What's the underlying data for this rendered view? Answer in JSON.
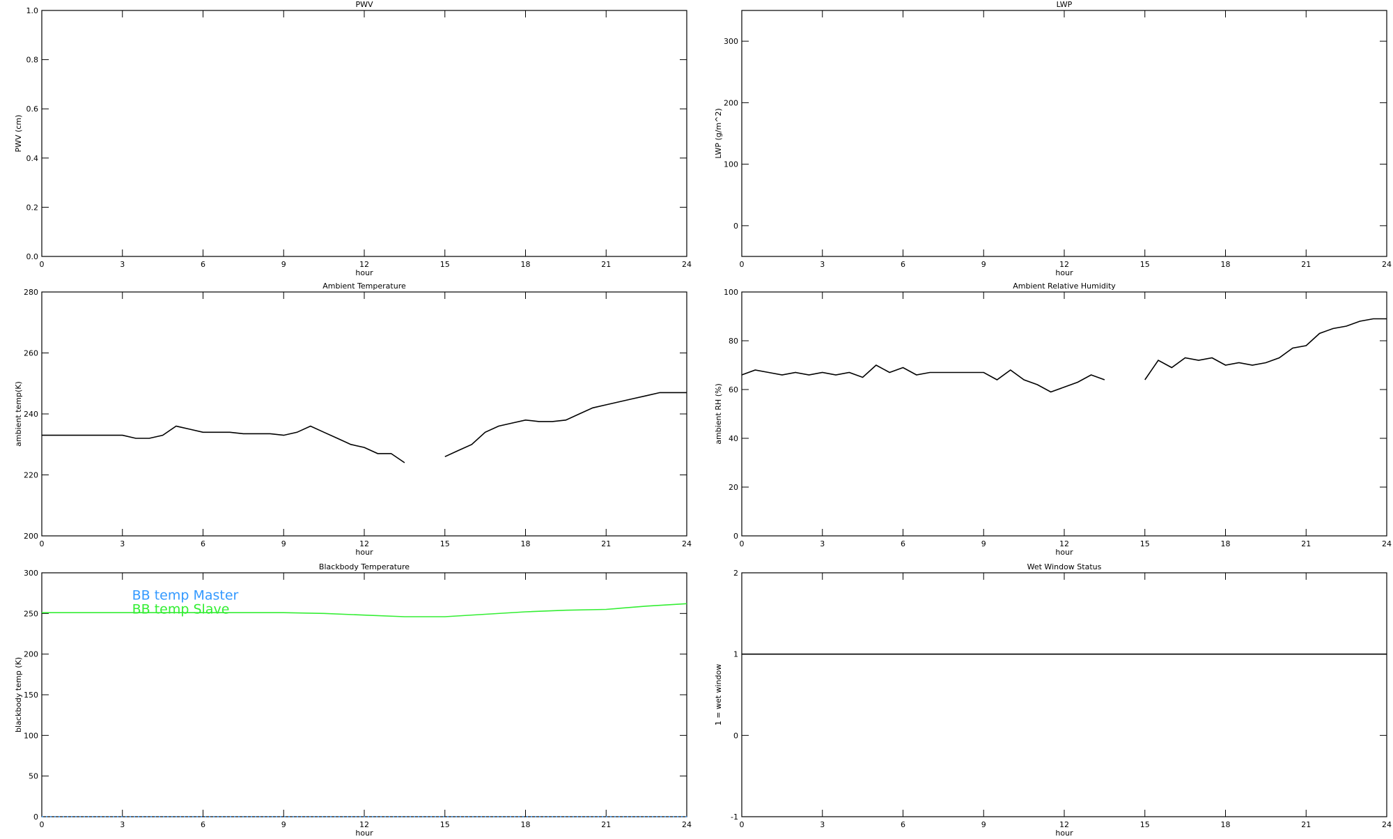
{
  "chart_data": [
    {
      "type": "line",
      "title": "PWV",
      "xlabel": "hour",
      "ylabel": "PWV (cm)",
      "xlim": [
        0,
        24
      ],
      "xticks": [
        0,
        3,
        6,
        9,
        12,
        15,
        18,
        21,
        24
      ],
      "ylim": [
        0,
        1
      ],
      "yticks": [
        {
          "value": 0,
          "label": "0.0"
        },
        0.2,
        0.4,
        0.6,
        0.8,
        {
          "value": 1,
          "label": "1.0"
        }
      ]
    },
    {
      "type": "line",
      "title": "LWP",
      "xlabel": "hour",
      "ylabel": "LWP (g/m^2)",
      "xlim": [
        0,
        24
      ],
      "xticks": [
        0,
        3,
        6,
        9,
        12,
        15,
        18,
        21,
        24
      ],
      "ylim": [
        -50,
        350
      ],
      "yticks": [
        0,
        100,
        200,
        300
      ]
    },
    {
      "type": "line",
      "title": "Ambient Temperature",
      "xlabel": "hour",
      "ylabel": "ambient temp(K)",
      "xlim": [
        0,
        24
      ],
      "xticks": [
        0,
        3,
        6,
        9,
        12,
        15,
        18,
        21,
        24
      ],
      "ylim": [
        200,
        280
      ],
      "yticks": [
        200,
        220,
        240,
        260,
        280
      ],
      "x": [
        0,
        0.5,
        1,
        1.5,
        2,
        2.5,
        3,
        3.5,
        4,
        4.5,
        5,
        5.5,
        6,
        6.5,
        7,
        7.5,
        8,
        8.5,
        9,
        9.5,
        10,
        10.5,
        11,
        11.5,
        12,
        12.5,
        13,
        13.5,
        14,
        14.5,
        15,
        15.5,
        16,
        16.5,
        17,
        17.5,
        18,
        18.5,
        19,
        19.5,
        20,
        20.5,
        21,
        21.5,
        22,
        22.5,
        23,
        23.5,
        24
      ],
      "series": [
        {
          "color": "#000000",
          "values": [
            233,
            233,
            233,
            233,
            233,
            233,
            233,
            232,
            232,
            233,
            236,
            235,
            234,
            234,
            234,
            233.5,
            233.5,
            233.5,
            233,
            234,
            236,
            234,
            232,
            230,
            229,
            227,
            227,
            224,
            null,
            null,
            226,
            228,
            230,
            234,
            236,
            237,
            238,
            237.5,
            237.5,
            238,
            240,
            242,
            243,
            244,
            245,
            246,
            247,
            247,
            247
          ]
        }
      ]
    },
    {
      "type": "line",
      "title": "Ambient Relative Humidity",
      "xlabel": "hour",
      "ylabel": "ambient RH (%)",
      "xlim": [
        0,
        24
      ],
      "xticks": [
        0,
        3,
        6,
        9,
        12,
        15,
        18,
        21,
        24
      ],
      "ylim": [
        0,
        100
      ],
      "yticks": [
        0,
        20,
        40,
        60,
        80,
        100
      ],
      "x": [
        0,
        0.5,
        1,
        1.5,
        2,
        2.5,
        3,
        3.5,
        4,
        4.5,
        5,
        5.5,
        6,
        6.5,
        7,
        7.5,
        8,
        8.5,
        9,
        9.5,
        10,
        10.5,
        11,
        11.5,
        12,
        12.5,
        13,
        13.5,
        14,
        14.5,
        15,
        15.5,
        16,
        16.5,
        17,
        17.5,
        18,
        18.5,
        19,
        19.5,
        20,
        20.5,
        21,
        21.5,
        22,
        22.5,
        23,
        23.5,
        24
      ],
      "series": [
        {
          "color": "#000000",
          "values": [
            66,
            68,
            67,
            66,
            67,
            66,
            67,
            66,
            67,
            65,
            70,
            67,
            69,
            66,
            67,
            67,
            67,
            67,
            67,
            64,
            68,
            64,
            62,
            59,
            61,
            63,
            66,
            64,
            null,
            null,
            64,
            72,
            69,
            73,
            72,
            73,
            70,
            71,
            70,
            71,
            73,
            77,
            78,
            83,
            85,
            86,
            88,
            89,
            89
          ]
        }
      ]
    },
    {
      "type": "line",
      "title": "Blackbody Temperature",
      "xlabel": "hour",
      "ylabel": "blackbody temp (K)",
      "xlim": [
        0,
        24
      ],
      "xticks": [
        0,
        3,
        6,
        9,
        12,
        15,
        18,
        21,
        24
      ],
      "ylim": [
        0,
        300
      ],
      "yticks": [
        0,
        50,
        100,
        150,
        200,
        250,
        300
      ],
      "legend": "upper left",
      "x": [
        0,
        1.5,
        3,
        4.5,
        6,
        7.5,
        9,
        10.5,
        12,
        13.5,
        15,
        16.5,
        18,
        19.5,
        21,
        22.5,
        24
      ],
      "series": [
        {
          "name": "BB temp Master",
          "color": "#3399ff",
          "linestyle": "dotted",
          "values": [
            0,
            0,
            0,
            0,
            0,
            0,
            0,
            0,
            0,
            0,
            0,
            0,
            0,
            0,
            0,
            0,
            0
          ]
        },
        {
          "name": "BB temp Slave",
          "color": "#33ee33",
          "values": [
            251,
            251,
            251,
            251,
            251,
            251,
            251,
            250,
            248,
            246,
            246,
            249,
            252,
            254,
            255,
            259,
            262
          ]
        }
      ]
    },
    {
      "type": "line",
      "title": "Wet Window Status",
      "xlabel": "hour",
      "ylabel": "1 = wet window",
      "xlim": [
        0,
        24
      ],
      "xticks": [
        0,
        3,
        6,
        9,
        12,
        15,
        18,
        21,
        24
      ],
      "ylim": [
        -1,
        2
      ],
      "yticks": [
        -1,
        0,
        1,
        2
      ],
      "x": [
        0,
        24
      ],
      "series": [
        {
          "color": "#000000",
          "values": [
            1,
            1
          ]
        }
      ]
    }
  ]
}
